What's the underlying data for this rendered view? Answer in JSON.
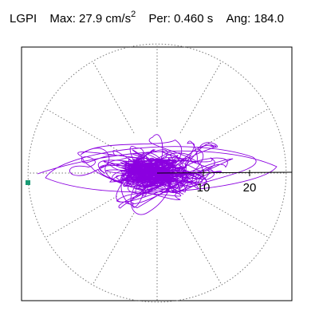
{
  "header": {
    "station": "LGPI",
    "max_label": "Max:",
    "max_value": "27.9 cm/s",
    "max_exponent": "2",
    "per_label": "Per:",
    "per_value": "0.460 s",
    "ang_label": "Ang:",
    "ang_value": "184.0"
  },
  "chart_data": {
    "type": "scatter",
    "subtype": "polar-hodogram",
    "radial_ticks": [
      10,
      20
    ],
    "radial_tick_labels": [
      "10",
      "20"
    ],
    "radial_max": 27.9,
    "angle_spokes_deg": [
      0,
      30,
      60,
      90,
      120,
      150,
      180,
      210,
      240,
      270,
      300,
      330
    ],
    "direction_angle_deg": 184.0,
    "trace_color": "#8b00e0",
    "marker_color": "#1a9a74",
    "grid": true
  }
}
